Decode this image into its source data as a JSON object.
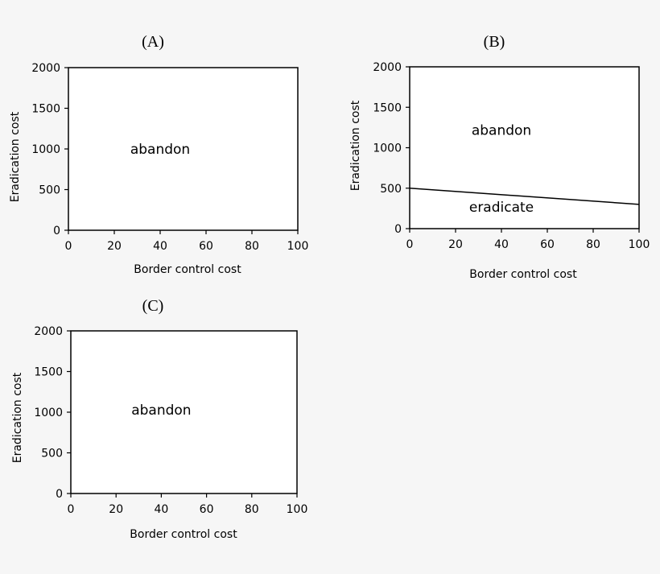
{
  "chart_data": [
    {
      "type": "line",
      "title": "(A)",
      "xlabel": "Border control cost",
      "ylabel": "Eradication cost",
      "xlim": [
        0,
        100
      ],
      "ylim": [
        0,
        2000
      ],
      "xticks": [
        "0",
        "20",
        "40",
        "60",
        "80",
        "100"
      ],
      "yticks": [
        "0",
        "500",
        "1000",
        "1500",
        "2000"
      ],
      "series": [],
      "annotations": [
        {
          "text": "abandon",
          "x": 40,
          "y": 1000
        }
      ]
    },
    {
      "type": "line",
      "title": "(B)",
      "xlabel": "Border control cost",
      "ylabel": "Eradication cost",
      "xlim": [
        0,
        100
      ],
      "ylim": [
        0,
        2000
      ],
      "xticks": [
        "0",
        "20",
        "40",
        "60",
        "80",
        "100"
      ],
      "yticks": [
        "0",
        "500",
        "1000",
        "1500",
        "2000"
      ],
      "series": [
        {
          "x": [
            0,
            100
          ],
          "y": [
            500,
            300
          ]
        }
      ],
      "annotations": [
        {
          "text": "abandon",
          "x": 40,
          "y": 1220
        },
        {
          "text": "eradicate",
          "x": 40,
          "y": 270
        }
      ]
    },
    {
      "type": "line",
      "title": "(C)",
      "xlabel": "Border control cost",
      "ylabel": "Eradication cost",
      "xlim": [
        0,
        100
      ],
      "ylim": [
        0,
        2000
      ],
      "xticks": [
        "0",
        "20",
        "40",
        "60",
        "80",
        "100"
      ],
      "yticks": [
        "0",
        "500",
        "1000",
        "1500",
        "2000"
      ],
      "series": [],
      "annotations": [
        {
          "text": "abandon",
          "x": 40,
          "y": 1030
        }
      ]
    }
  ]
}
